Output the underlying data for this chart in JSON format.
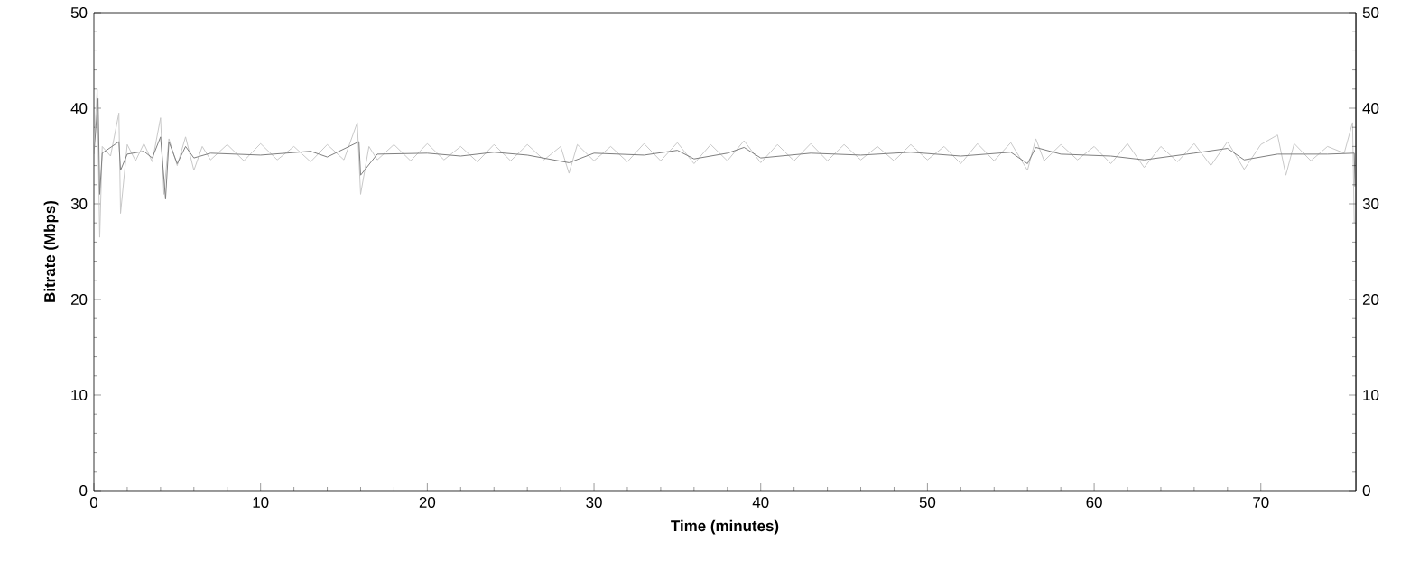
{
  "chart_data": {
    "type": "line",
    "xlabel": "Time (minutes)",
    "ylabel": "Bitrate (Mbps)",
    "xlim": [
      0,
      75.7
    ],
    "xticks": [
      0,
      10,
      20,
      30,
      40,
      50,
      60,
      70
    ],
    "ylim": [
      0,
      50
    ],
    "yticks": [
      0,
      10,
      20,
      30,
      40,
      50
    ],
    "y2lim": [
      0,
      50
    ],
    "y2ticks": [
      0,
      10,
      20,
      30,
      40,
      50
    ],
    "grid": false,
    "legend": false,
    "marker": "none",
    "line_style": "solid",
    "series": [
      {
        "color": "#c8c8c8",
        "x": [
          0,
          0.2,
          0.35,
          0.5,
          1.0,
          1.5,
          1.6,
          2,
          2.5,
          3,
          3.5,
          4,
          4.2,
          4.5,
          5,
          5.5,
          6,
          6.5,
          7,
          8,
          9,
          10,
          11,
          12,
          13,
          14,
          15,
          15.8,
          16,
          16.5,
          17,
          18,
          19,
          20,
          21,
          22,
          23,
          24,
          25,
          26,
          27,
          28,
          28.5,
          29,
          30,
          31,
          32,
          33,
          34,
          35,
          36,
          37,
          38,
          39,
          40,
          41,
          42,
          43,
          44,
          45,
          46,
          47,
          48,
          49,
          50,
          51,
          52,
          53,
          54,
          55,
          56,
          56.5,
          57,
          58,
          59,
          60,
          61,
          62,
          63,
          64,
          65,
          66,
          67,
          68,
          69,
          70,
          71,
          71.5,
          72,
          73,
          74,
          75,
          75.5,
          75.6
        ],
        "values": [
          35.5,
          42,
          26.5,
          36,
          35,
          39.5,
          29,
          36.2,
          34.5,
          36.3,
          34.4,
          39,
          31,
          36.8,
          34,
          37,
          33.5,
          36,
          34.6,
          36.2,
          34.5,
          36.3,
          34.6,
          36,
          34.4,
          36.2,
          34.6,
          38.5,
          31,
          36,
          34.6,
          36.2,
          34.5,
          36.3,
          34.6,
          36,
          34.4,
          36.2,
          34.5,
          36.2,
          34.6,
          36,
          33.2,
          36.2,
          34.5,
          36,
          34.4,
          36.3,
          34.5,
          36.4,
          34.2,
          36.2,
          34.5,
          36.6,
          34.3,
          36.2,
          34.5,
          36.3,
          34.5,
          36.2,
          34.6,
          36,
          34.5,
          36.2,
          34.6,
          36,
          34.2,
          36.3,
          34.5,
          36.4,
          33.5,
          36.8,
          34.5,
          36.2,
          34.6,
          36,
          34.2,
          36.3,
          33.8,
          36,
          34.4,
          36.3,
          34,
          36.5,
          33.6,
          36.2,
          37.2,
          33,
          36.3,
          34.5,
          36,
          35.3,
          38.5,
          28
        ]
      },
      {
        "color": "#7f7f7f",
        "x": [
          0,
          0.25,
          0.35,
          0.5,
          1.5,
          1.6,
          2,
          3,
          3.5,
          4,
          4.3,
          4.5,
          5,
          5.5,
          6,
          7,
          10,
          13,
          14,
          15.9,
          16,
          17,
          20,
          22,
          24,
          26,
          28.5,
          30,
          33,
          35,
          36,
          38,
          39,
          40,
          43,
          46,
          49,
          52,
          55,
          56,
          56.5,
          58,
          61,
          63,
          66,
          68,
          69,
          71,
          74,
          75.6,
          75.65
        ],
        "values": [
          35.2,
          41,
          31,
          35.3,
          36.5,
          33.5,
          35.2,
          35.5,
          34.8,
          37,
          30.5,
          36.5,
          34.2,
          36,
          34.8,
          35.3,
          35.1,
          35.5,
          34.9,
          36.5,
          33,
          35.2,
          35.3,
          35.0,
          35.4,
          35.1,
          34.3,
          35.3,
          35.1,
          35.6,
          34.7,
          35.3,
          35.9,
          34.8,
          35.3,
          35.1,
          35.4,
          35.0,
          35.4,
          34.2,
          35.9,
          35.2,
          35.0,
          34.6,
          35.3,
          35.8,
          34.6,
          35.2,
          35.2,
          35.3,
          31.8
        ]
      }
    ]
  }
}
